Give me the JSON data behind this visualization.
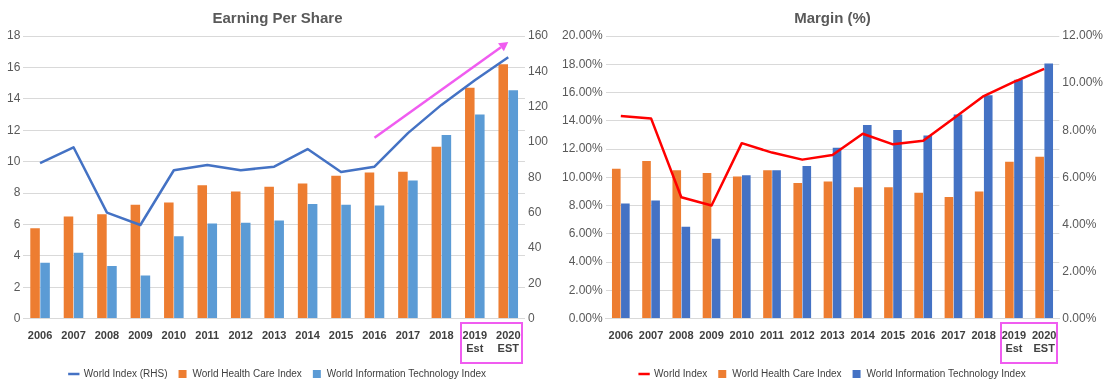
{
  "chart_data": [
    {
      "type": "bar",
      "title": "Earning Per Share",
      "categories": [
        "2006",
        "2007",
        "2008",
        "2009",
        "2010",
        "2011",
        "2012",
        "2013",
        "2014",
        "2015",
        "2016",
        "2017",
        "2018",
        "2019 Est",
        "2020 EST"
      ],
      "series": [
        {
          "name": "World Health Care Index",
          "color": "#ed7d31",
          "values": [
            5.75,
            6.5,
            6.65,
            7.25,
            7.4,
            8.5,
            8.1,
            8.4,
            8.6,
            9.1,
            9.3,
            9.35,
            10.95,
            14.7,
            16.2
          ]
        },
        {
          "name": "World Information Technology Index",
          "color": "#5b9bd5",
          "values": [
            3.55,
            4.2,
            3.35,
            2.75,
            5.25,
            6.05,
            6.1,
            6.25,
            7.3,
            7.25,
            7.2,
            8.8,
            11.7,
            13.0,
            14.55
          ]
        },
        {
          "name": "World Index (RHS)",
          "type": "line",
          "axis": "y2",
          "color": "#4472c4",
          "values": [
            88,
            97,
            60,
            53,
            84,
            87,
            84,
            86,
            96,
            83,
            86,
            105,
            121,
            135,
            148
          ]
        }
      ],
      "ylim": [
        0,
        18
      ],
      "yticks": [
        0,
        2,
        4,
        6,
        8,
        10,
        12,
        14,
        16,
        18
      ],
      "y2lim": [
        0,
        160
      ],
      "y2ticks": [
        0,
        20,
        40,
        60,
        80,
        100,
        120,
        140,
        160
      ],
      "grid": "y",
      "legend": "bottom",
      "marker": "none"
    },
    {
      "type": "bar",
      "title": "Margin (%)",
      "categories": [
        "2006",
        "2007",
        "2008",
        "2009",
        "2010",
        "2011",
        "2012",
        "2013",
        "2014",
        "2015",
        "2016",
        "2017",
        "2018",
        "2019 Est",
        "2020 EST"
      ],
      "series": [
        {
          "name": "World Health Care Index",
          "color": "#ed7d31",
          "values": [
            10.6,
            11.15,
            10.5,
            10.3,
            10.05,
            10.5,
            9.6,
            9.7,
            9.3,
            9.3,
            8.9,
            8.6,
            9.0,
            11.1,
            11.45
          ]
        },
        {
          "name": "World Information Technology Index",
          "color": "#4472c4",
          "values": [
            8.15,
            8.35,
            6.5,
            5.65,
            10.15,
            10.5,
            10.8,
            12.1,
            13.7,
            13.35,
            12.95,
            14.45,
            15.8,
            16.9,
            18.05
          ]
        },
        {
          "name": "World Index",
          "type": "line",
          "axis": "y2",
          "color": "#ff0000",
          "values": [
            8.6,
            8.5,
            5.15,
            4.8,
            7.45,
            7.05,
            6.75,
            6.95,
            7.85,
            7.4,
            7.55,
            8.5,
            9.45,
            10.05,
            10.6
          ]
        }
      ],
      "ylim": [
        0,
        20
      ],
      "yticks": [
        {
          "value": 0,
          "label": "0.00%"
        },
        {
          "value": 2,
          "label": "2.00%"
        },
        {
          "value": 4,
          "label": "4.00%"
        },
        {
          "value": 6,
          "label": "6.00%"
        },
        {
          "value": 8,
          "label": "8.00%"
        },
        {
          "value": 10,
          "label": "10.00%"
        },
        {
          "value": 12,
          "label": "12.00%"
        },
        {
          "value": 14,
          "label": "14.00%"
        },
        {
          "value": 16,
          "label": "16.00%"
        },
        {
          "value": 18,
          "label": "18.00%"
        },
        {
          "value": 20,
          "label": "20.00%"
        }
      ],
      "y2lim": [
        0,
        12
      ],
      "y2ticks": [
        {
          "value": 0,
          "label": "0.00%"
        },
        {
          "value": 2,
          "label": "2.00%"
        },
        {
          "value": 4,
          "label": "4.00%"
        },
        {
          "value": 6,
          "label": "6.00%"
        },
        {
          "value": 8,
          "label": "8.00%"
        },
        {
          "value": 10,
          "label": "10.00%"
        },
        {
          "value": 12,
          "label": "12.00%"
        }
      ],
      "grid": "y",
      "legend": "bottom",
      "marker": "none"
    }
  ]
}
